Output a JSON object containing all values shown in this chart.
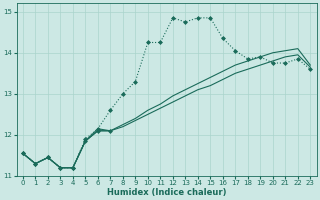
{
  "xlabel": "Humidex (Indice chaleur)",
  "background_color": "#cce8e4",
  "grid_color": "#aad4cc",
  "line_color": "#1a6b5a",
  "xlim": [
    -0.5,
    23.5
  ],
  "ylim": [
    11,
    15.2
  ],
  "yticks": [
    11,
    12,
    13,
    14,
    15
  ],
  "xticks": [
    0,
    1,
    2,
    3,
    4,
    5,
    6,
    7,
    8,
    9,
    10,
    11,
    12,
    13,
    14,
    15,
    16,
    17,
    18,
    19,
    20,
    21,
    22,
    23
  ],
  "series": [
    {
      "x": [
        0,
        1,
        2,
        3,
        4,
        5,
        6,
        7
      ],
      "y": [
        11.55,
        11.3,
        11.45,
        11.2,
        11.2,
        11.85,
        12.1,
        12.1
      ],
      "style": "solid",
      "marker": "D",
      "markersize": 2.0,
      "linewidth": 0.8
    },
    {
      "x": [
        0,
        1,
        2,
        3,
        4,
        5,
        6,
        7,
        8,
        9,
        10,
        11,
        12,
        13,
        14,
        15,
        16,
        17,
        18,
        19,
        20,
        21,
        22,
        23
      ],
      "y": [
        11.55,
        11.3,
        11.45,
        11.2,
        11.2,
        11.9,
        12.15,
        12.6,
        13.0,
        13.3,
        14.25,
        14.25,
        14.85,
        14.75,
        14.85,
        14.85,
        14.35,
        14.05,
        13.85,
        13.9,
        13.75,
        13.75,
        13.85,
        13.6
      ],
      "style": "dotted",
      "marker": "D",
      "markersize": 2.0,
      "linewidth": 0.8
    },
    {
      "x": [
        0,
        1,
        2,
        3,
        4,
        5,
        6,
        7,
        8,
        9,
        10,
        11,
        12,
        13,
        14,
        15,
        16,
        17,
        18,
        19,
        20,
        21,
        22,
        23
      ],
      "y": [
        11.55,
        11.3,
        11.45,
        11.2,
        11.2,
        11.85,
        12.1,
        12.1,
        12.2,
        12.35,
        12.5,
        12.65,
        12.8,
        12.95,
        13.1,
        13.2,
        13.35,
        13.5,
        13.6,
        13.7,
        13.8,
        13.9,
        13.95,
        13.65
      ],
      "style": "solid",
      "marker": null,
      "markersize": null,
      "linewidth": 0.8
    },
    {
      "x": [
        0,
        1,
        2,
        3,
        4,
        5,
        6,
        7,
        8,
        9,
        10,
        11,
        12,
        13,
        14,
        15,
        16,
        17,
        18,
        19,
        20,
        21,
        22,
        23
      ],
      "y": [
        11.55,
        11.3,
        11.45,
        11.2,
        11.2,
        11.85,
        12.15,
        12.1,
        12.25,
        12.4,
        12.6,
        12.75,
        12.95,
        13.1,
        13.25,
        13.4,
        13.55,
        13.7,
        13.8,
        13.9,
        14.0,
        14.05,
        14.1,
        13.7
      ],
      "style": "solid",
      "marker": null,
      "markersize": null,
      "linewidth": 0.8
    }
  ]
}
